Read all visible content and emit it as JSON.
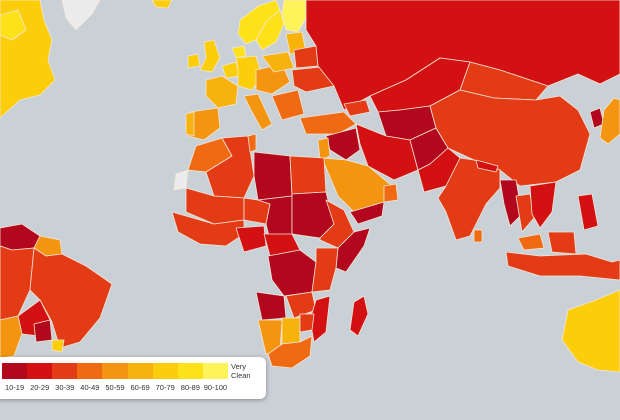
{
  "map": {
    "background": "#c9d0d6",
    "no_data_color": "#ececec",
    "border_color": "#f3e6d6"
  },
  "legend": {
    "end_label_line1": "Very",
    "end_label_line2": "Clean",
    "bins": [
      {
        "label": "10-19",
        "color": "#b3071d"
      },
      {
        "label": "20-29",
        "color": "#d31113"
      },
      {
        "label": "30-39",
        "color": "#e43b17"
      },
      {
        "label": "40-49",
        "color": "#ef6a12"
      },
      {
        "label": "50-59",
        "color": "#f39510"
      },
      {
        "label": "60-69",
        "color": "#f8b20c"
      },
      {
        "label": "70-79",
        "color": "#fbcd0b"
      },
      {
        "label": "80-89",
        "color": "#fde21a"
      },
      {
        "label": "90-100",
        "color": "#fff35a"
      }
    ]
  }
}
